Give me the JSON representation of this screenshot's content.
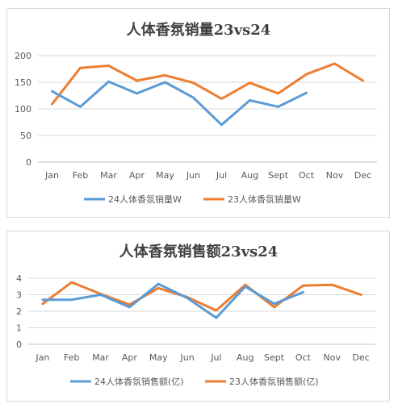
{
  "chart_data": [
    {
      "type": "line",
      "title": "人体香氛销量23vs24",
      "xlabel": "",
      "ylabel": "",
      "categories": [
        "Jan",
        "Feb",
        "Mar",
        "Apr",
        "May",
        "Jun",
        "Jul",
        "Aug",
        "Sept",
        "Oct",
        "Nov",
        "Dec"
      ],
      "yticks": [
        "0",
        "50",
        "100",
        "150",
        "200"
      ],
      "ylim": [
        0,
        200
      ],
      "grid": true,
      "legend_position": "bottom",
      "series": [
        {
          "name": "24人体香氛销量W",
          "color": "#5b9bd5",
          "values": [
            133,
            104,
            151,
            129,
            150,
            121,
            70,
            116,
            104,
            130,
            null,
            null
          ]
        },
        {
          "name": "23人体香氛销量W",
          "color": "#ed7d31",
          "values": [
            109,
            177,
            181,
            153,
            163,
            149,
            119,
            149,
            129,
            165,
            185,
            153
          ]
        }
      ]
    },
    {
      "type": "line",
      "title": "人体香氛销售额23vs24",
      "xlabel": "",
      "ylabel": "",
      "categories": [
        "Jan",
        "Feb",
        "Mar",
        "Apr",
        "May",
        "Jun",
        "Jul",
        "Aug",
        "Sept",
        "Oct",
        "Nov",
        "Dec"
      ],
      "yticks": [
        "0",
        "1",
        "2",
        "3",
        "4"
      ],
      "ylim": [
        0,
        4
      ],
      "grid": true,
      "legend_position": "bottom",
      "series": [
        {
          "name": "24人体香氛销售额(亿)",
          "color": "#5b9bd5",
          "values": [
            2.7,
            2.7,
            3.0,
            2.25,
            3.65,
            2.8,
            1.6,
            3.5,
            2.45,
            3.15,
            null,
            null
          ]
        },
        {
          "name": "23人体香氛销售额(亿)",
          "color": "#ed7d31",
          "values": [
            2.45,
            3.75,
            3.05,
            2.4,
            3.4,
            2.85,
            2.05,
            3.6,
            2.25,
            3.55,
            3.6,
            3.0
          ]
        }
      ]
    }
  ]
}
